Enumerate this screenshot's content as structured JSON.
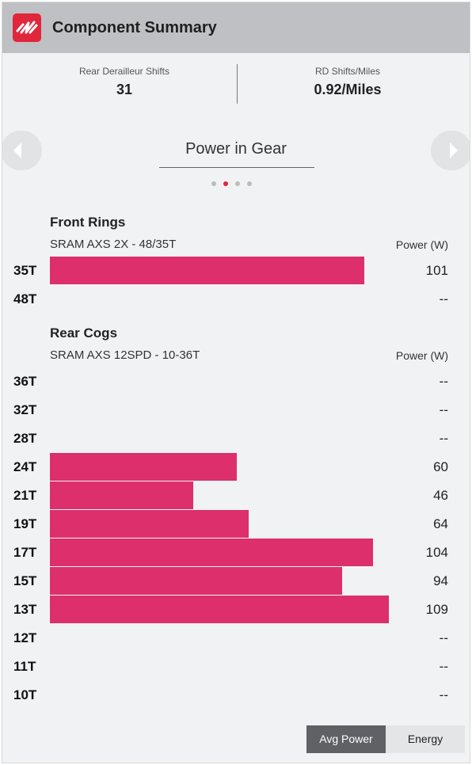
{
  "header": {
    "title": "Component Summary",
    "logo_icon": "sram-logo-icon",
    "accent_color": "#e0263b"
  },
  "stats": [
    {
      "label": "Rear Derailleur Shifts",
      "value": "31"
    },
    {
      "label": "RD Shifts/Miles",
      "value": "0.92/Miles"
    }
  ],
  "carousel": {
    "title": "Power in Gear",
    "page_count": 4,
    "active_index": 1,
    "prev_icon": "chevron-left-icon",
    "next_icon": "chevron-right-icon"
  },
  "chart_data": {
    "type": "bar",
    "bar_color": "#dc2f6c",
    "xlim": [
      0,
      109
    ],
    "sections": [
      {
        "title": "Front Rings",
        "subtitle": "SRAM AXS 2X - 48/35T",
        "value_header": "Power (W)",
        "rows": [
          {
            "gear": "35T",
            "value": 101,
            "display": "101"
          },
          {
            "gear": "48T",
            "value": null,
            "display": "--"
          }
        ]
      },
      {
        "title": "Rear Cogs",
        "subtitle": "SRAM AXS 12SPD - 10-36T",
        "value_header": "Power (W)",
        "rows": [
          {
            "gear": "36T",
            "value": null,
            "display": "--"
          },
          {
            "gear": "32T",
            "value": null,
            "display": "--"
          },
          {
            "gear": "28T",
            "value": null,
            "display": "--"
          },
          {
            "gear": "24T",
            "value": 60,
            "display": "60"
          },
          {
            "gear": "21T",
            "value": 46,
            "display": "46"
          },
          {
            "gear": "19T",
            "value": 64,
            "display": "64"
          },
          {
            "gear": "17T",
            "value": 104,
            "display": "104"
          },
          {
            "gear": "15T",
            "value": 94,
            "display": "94"
          },
          {
            "gear": "13T",
            "value": 109,
            "display": "109"
          },
          {
            "gear": "12T",
            "value": null,
            "display": "--"
          },
          {
            "gear": "11T",
            "value": null,
            "display": "--"
          },
          {
            "gear": "10T",
            "value": null,
            "display": "--"
          }
        ]
      }
    ]
  },
  "toggle": {
    "options": [
      "Avg Power",
      "Energy"
    ],
    "selected": "Avg Power"
  }
}
